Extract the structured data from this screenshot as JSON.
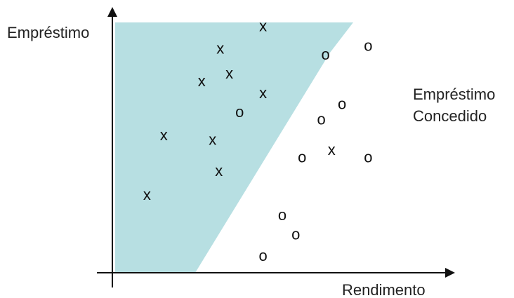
{
  "chart_data": {
    "type": "scatter",
    "xlabel": "Rendimento",
    "ylabel": "Empréstimo",
    "region_label_lines": [
      "Empréstimo",
      "Concedido"
    ],
    "region_color": "#b7dfe2",
    "axis_color": "#111111",
    "ylim": [
      0,
      10
    ],
    "xlim": [
      0,
      10
    ],
    "points": [
      {
        "x": 4.92,
        "y": 9.81,
        "label": "x"
      },
      {
        "x": 3.5,
        "y": 8.92,
        "label": "x"
      },
      {
        "x": 3.8,
        "y": 7.92,
        "label": "x"
      },
      {
        "x": 2.88,
        "y": 7.62,
        "label": "x"
      },
      {
        "x": 4.92,
        "y": 7.14,
        "label": "x"
      },
      {
        "x": 1.62,
        "y": 5.46,
        "label": "x"
      },
      {
        "x": 3.24,
        "y": 5.28,
        "label": "x"
      },
      {
        "x": 3.45,
        "y": 4.03,
        "label": "x"
      },
      {
        "x": 1.06,
        "y": 3.07,
        "label": "x"
      },
      {
        "x": 7.2,
        "y": 4.87,
        "label": "x"
      },
      {
        "x": 4.14,
        "y": 6.38,
        "label": "o"
      },
      {
        "x": 7.0,
        "y": 8.68,
        "label": "o"
      },
      {
        "x": 8.42,
        "y": 9.03,
        "label": "o"
      },
      {
        "x": 7.55,
        "y": 6.71,
        "label": "o"
      },
      {
        "x": 6.86,
        "y": 6.09,
        "label": "o"
      },
      {
        "x": 6.22,
        "y": 4.58,
        "label": "o"
      },
      {
        "x": 8.42,
        "y": 4.58,
        "label": "o"
      },
      {
        "x": 5.56,
        "y": 2.27,
        "label": "o"
      },
      {
        "x": 6.01,
        "y": 1.49,
        "label": "o"
      },
      {
        "x": 4.92,
        "y": 0.64,
        "label": "o"
      }
    ]
  }
}
